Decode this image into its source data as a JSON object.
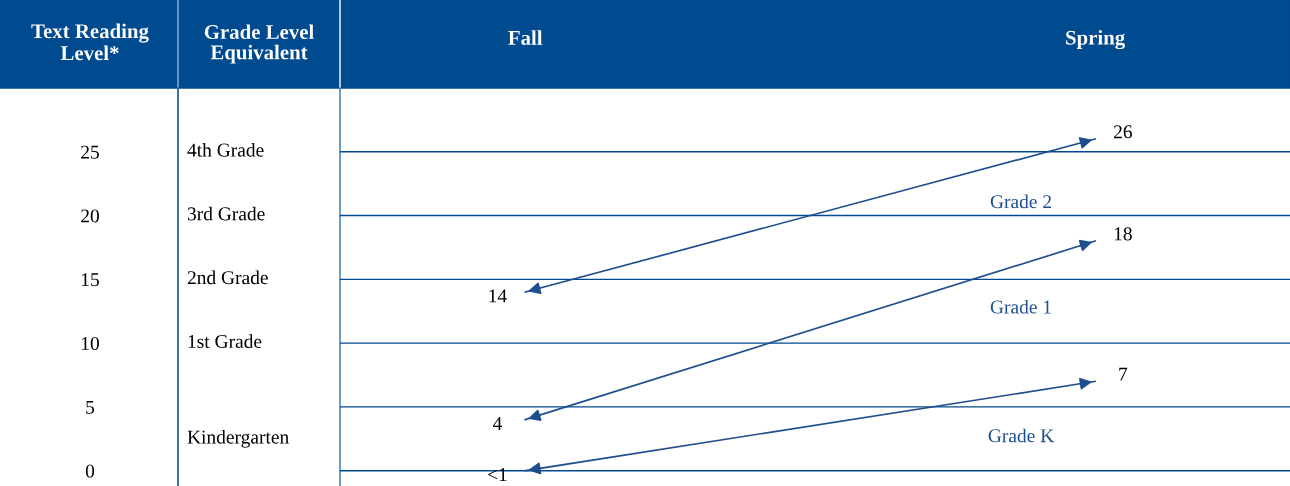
{
  "chart_data": {
    "type": "line",
    "categories": [
      "Fall",
      "Spring"
    ],
    "ylabel": "Text Reading Level*",
    "ylim": [
      -1.2,
      30
    ],
    "yticks": [
      0,
      5,
      10,
      15,
      20,
      25
    ],
    "grid": "y",
    "marker": "none",
    "line_style": "solid",
    "annotations": [
      "Grade Level Equivalent",
      "4th Grade",
      "3rd Grade",
      "2nd Grade",
      "1st Grade",
      "Kindergarten"
    ],
    "series": [
      {
        "name": "Grade 2",
        "color": "#1f4e8f",
        "values": [
          14,
          26
        ],
        "value_labels": [
          "14",
          "26"
        ]
      },
      {
        "name": "Grade 1",
        "color": "#1f4e8f",
        "values": [
          4,
          18
        ],
        "value_labels": [
          "4",
          "18"
        ]
      },
      {
        "name": "Grade K",
        "color": "#1f4e8f",
        "values": [
          0,
          7
        ],
        "value_labels": [
          "<1",
          "7"
        ]
      }
    ]
  }
}
